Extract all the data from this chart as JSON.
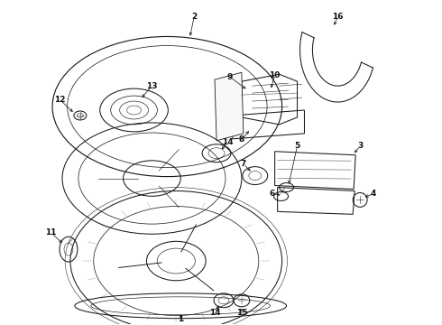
{
  "bg_color": "#ffffff",
  "line_color": "#1a1a1a",
  "figsize": [
    4.9,
    3.6
  ],
  "dpi": 100,
  "label_fontsize": 6.5,
  "lw": 0.75
}
